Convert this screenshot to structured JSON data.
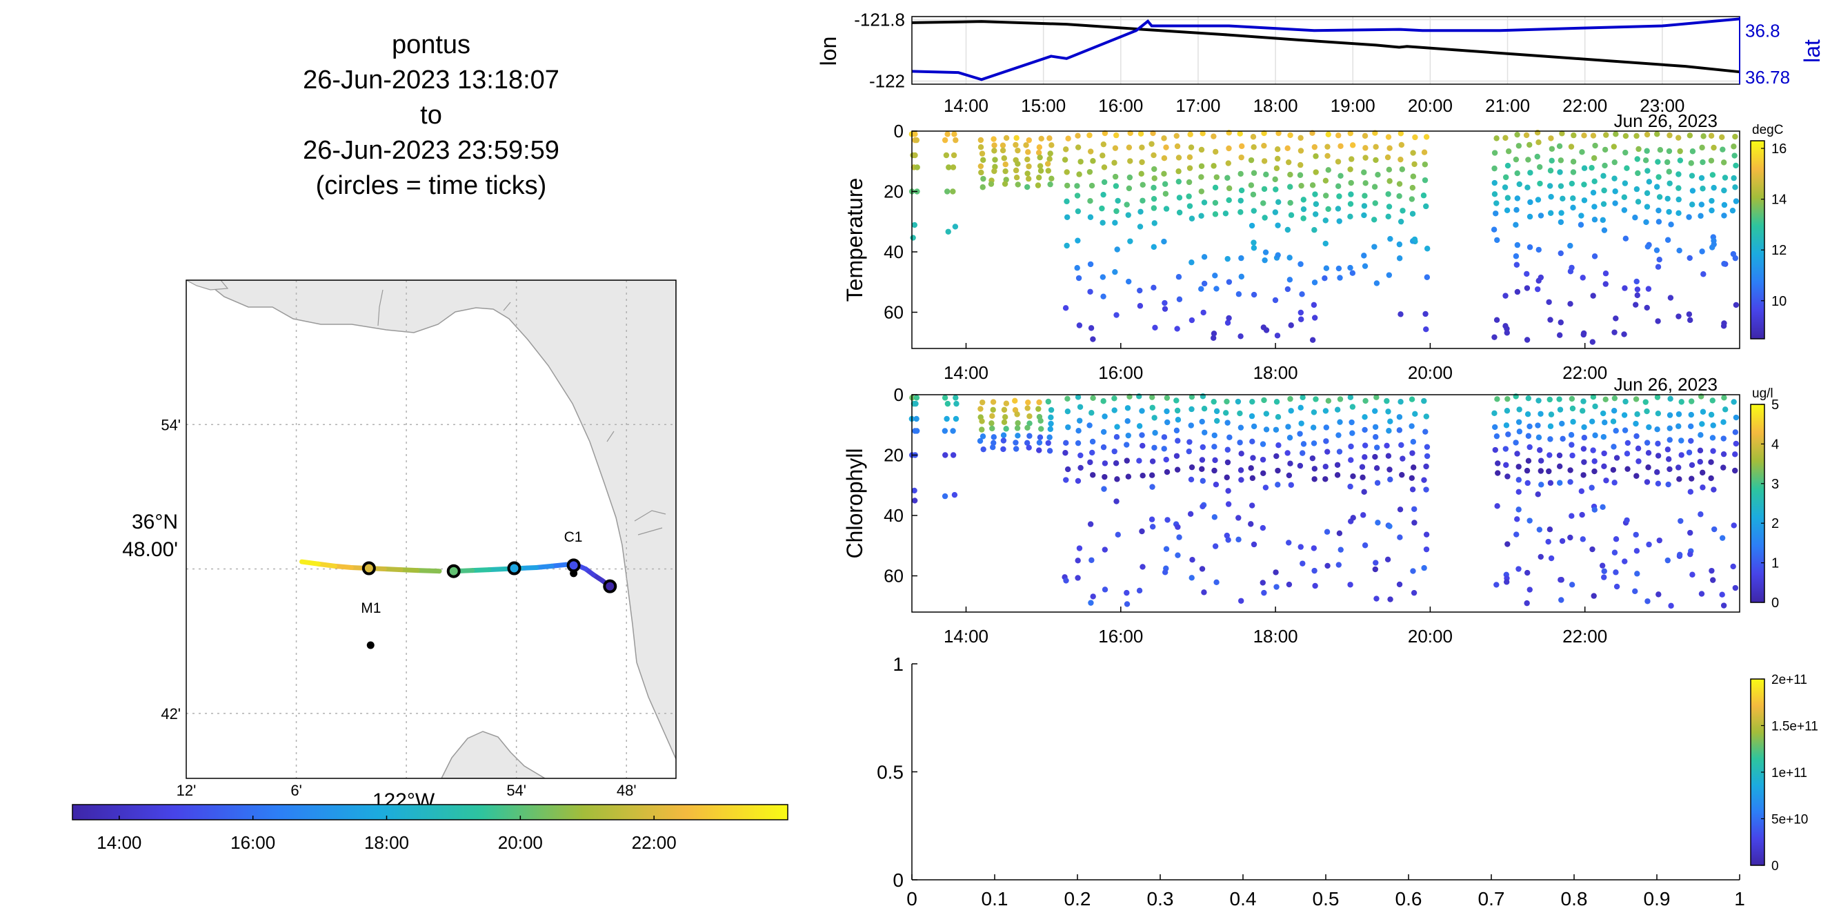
{
  "figure": {
    "title_lines": [
      "pontus",
      "26-Jun-2023 13:18:07",
      "to",
      "26-Jun-2023 23:59:59",
      "(circles = time ticks)"
    ],
    "text_color": "#000000",
    "secondary_color": "#0000cc",
    "colormap": [
      "#3e26a8",
      "#4744e8",
      "#2d7ef6",
      "#1cabdf",
      "#2ec49e",
      "#a3bd3b",
      "#f4ba3f",
      "#f9fb15"
    ]
  },
  "chart_data": [
    {
      "id": "track-map",
      "type": "scatter",
      "title": "",
      "xlabel": "122°W",
      "ylabel": "36°N 48.00'",
      "ylabel_lines": [
        "36°N",
        "48.00'"
      ],
      "x_tick_labels": [
        "12'",
        "6'",
        "54'",
        "48'"
      ],
      "y_tick_labels": [
        "54'",
        "42'"
      ],
      "xlim": [
        -122.2,
        -121.755
      ],
      "ylim": [
        36.655,
        37.0
      ],
      "grid": true,
      "land_color": "#e8e8e8",
      "coast_color": "#999999",
      "stations": [
        {
          "label": "M1",
          "lon": -122.0325,
          "lat": 36.7472
        },
        {
          "label": "C1",
          "lon": -121.848,
          "lat": 36.797
        }
      ],
      "track": {
        "lon": [
          -121.815,
          -121.822,
          -121.83,
          -121.837,
          -121.846,
          -121.855,
          -121.868,
          -121.882,
          -121.896,
          -121.91,
          -121.925,
          -121.94,
          -121.955,
          -121.97,
          -121.99,
          -122.005,
          -122.02,
          -122.035,
          -122.05,
          -122.065,
          -122.08,
          -122.095
        ],
        "lat": [
          36.788,
          36.792,
          36.796,
          36.8,
          36.803,
          36.803,
          36.802,
          36.801,
          36.8005,
          36.8,
          36.7995,
          36.799,
          36.7985,
          36.7985,
          36.799,
          36.7995,
          36.8,
          36.8005,
          36.801,
          36.802,
          36.8035,
          36.805
        ],
        "hours": [
          13.3,
          13.8,
          14.3,
          14.8,
          15.3,
          15.9,
          16.5,
          17.2,
          17.9,
          18.5,
          19.1,
          19.6,
          20.0,
          20.4,
          20.8,
          21.2,
          21.6,
          22.0,
          22.4,
          22.8,
          23.4,
          24.0
        ]
      },
      "time_tick_circles": [
        {
          "lon": -121.815,
          "lat": 36.788,
          "hour": 13.3
        },
        {
          "lon": -121.848,
          "lat": 36.8025,
          "hour": 15.1
        },
        {
          "lon": -121.902,
          "lat": 36.8005,
          "hour": 17.7
        },
        {
          "lon": -121.957,
          "lat": 36.7985,
          "hour": 20.1
        },
        {
          "lon": -122.034,
          "lat": 36.8005,
          "hour": 22.0
        }
      ]
    },
    {
      "id": "time-colorbar",
      "type": "heatmap",
      "tick_labels": [
        "14:00",
        "16:00",
        "18:00",
        "20:00",
        "22:00"
      ],
      "tick_hours": [
        14,
        16,
        18,
        20,
        22
      ],
      "range": [
        13.3,
        24.0
      ]
    },
    {
      "id": "lon-lat",
      "type": "line",
      "title": "",
      "xlabel": "",
      "ylabel": "lon",
      "y2label": "lat",
      "x_tick_labels": [
        "14:00",
        "15:00",
        "16:00",
        "17:00",
        "18:00",
        "19:00",
        "20:00",
        "21:00",
        "22:00",
        "23:00"
      ],
      "x_tick_hours": [
        14,
        15,
        16,
        17,
        18,
        19,
        20,
        21,
        22,
        23
      ],
      "xlim": [
        13.3,
        24.0
      ],
      "ylim": [
        -122.01,
        -121.79
      ],
      "y_tick_labels": [
        "-121.8",
        "-122"
      ],
      "y_ticks": [
        -121.8,
        -122.0
      ],
      "y2lim": [
        36.777,
        36.806
      ],
      "y2_tick_labels": [
        "36.8",
        "36.78"
      ],
      "y2_ticks": [
        36.8,
        36.78
      ],
      "grid": true,
      "series": [
        {
          "name": "lon",
          "color": "#000000",
          "x": [
            13.3,
            14.2,
            15.3,
            16.3,
            17.3,
            18.3,
            19.3,
            19.6,
            19.7,
            20.3,
            21.3,
            22.3,
            23.3,
            24.0
          ],
          "y": [
            -121.81,
            -121.806,
            -121.815,
            -121.832,
            -121.848,
            -121.866,
            -121.883,
            -121.89,
            -121.887,
            -121.898,
            -121.916,
            -121.934,
            -121.952,
            -121.97
          ]
        },
        {
          "name": "lat",
          "color": "#0000cc",
          "x": [
            13.3,
            13.9,
            14.2,
            15.1,
            15.3,
            16.2,
            16.35,
            16.4,
            17.4,
            18.5,
            19.6,
            19.9,
            20.9,
            21.9,
            23.0,
            24.0
          ],
          "y": [
            36.7825,
            36.782,
            36.779,
            36.789,
            36.788,
            36.8,
            36.804,
            36.802,
            36.802,
            36.8,
            36.8005,
            36.8,
            36.8,
            36.801,
            36.802,
            36.805
          ]
        }
      ]
    },
    {
      "id": "temperature",
      "type": "scatter",
      "title": "",
      "xlabel": "",
      "ylabel": "Temperature",
      "date_label": "Jun 26, 2023",
      "x_tick_labels": [
        "14:00",
        "16:00",
        "18:00",
        "20:00",
        "22:00"
      ],
      "x_tick_hours": [
        14,
        16,
        18,
        20,
        22
      ],
      "xlim": [
        13.3,
        24.0
      ],
      "ylim": [
        0,
        72
      ],
      "y_reversed": true,
      "y_tick_labels": [
        "0",
        "20",
        "40",
        "60"
      ],
      "y_ticks": [
        0,
        20,
        40,
        60
      ],
      "colorbar": {
        "unit": "degC",
        "range": [
          8.5,
          16.3
        ],
        "tick_labels": [
          "16",
          "14",
          "12",
          "10"
        ],
        "ticks": [
          16,
          14,
          12,
          10
        ]
      },
      "profiles": {
        "top_hours": [
          13.32,
          13.35,
          13.75,
          13.85
        ],
        "dense_hours": [
          14.2,
          14.35,
          14.5,
          14.65,
          14.8,
          14.95,
          15.08
        ],
        "dive_start": 15.3,
        "dive_end": 20.0,
        "dive_step": 0.16,
        "dive2_start": 20.85,
        "dive2_end": 24.0,
        "dive2_step": 0.14
      },
      "profile_rule": {
        "surface_value": 15.5,
        "min_value": 9.0,
        "thermocline_depth": 14,
        "decay": 0.09
      }
    },
    {
      "id": "chlorophyll",
      "type": "scatter",
      "title": "",
      "xlabel": "",
      "ylabel": "Chlorophyll",
      "date_label": "Jun 26, 2023",
      "x_tick_labels": [
        "14:00",
        "16:00",
        "18:00",
        "20:00",
        "22:00"
      ],
      "x_tick_hours": [
        14,
        16,
        18,
        20,
        22
      ],
      "xlim": [
        13.3,
        24.0
      ],
      "ylim": [
        0,
        72
      ],
      "y_reversed": true,
      "y_tick_labels": [
        "0",
        "20",
        "40",
        "60"
      ],
      "y_ticks": [
        0,
        20,
        40,
        60
      ],
      "colorbar": {
        "unit": "ug/l",
        "range": [
          0,
          5
        ],
        "tick_labels": [
          "5",
          "4",
          "3",
          "2",
          "1",
          "0"
        ],
        "ticks": [
          5,
          4,
          3,
          2,
          1,
          0
        ]
      },
      "profile_rule": {
        "surface_value": 3.0,
        "peak_value": 4.5,
        "peak_hour_range": [
          14.2,
          15.0
        ],
        "decay": 0.12
      }
    },
    {
      "id": "empty-panel",
      "type": "scatter",
      "title": "",
      "xlabel": "",
      "ylabel": "",
      "x_tick_labels": [
        "0",
        "0.1",
        "0.2",
        "0.3",
        "0.4",
        "0.5",
        "0.6",
        "0.7",
        "0.8",
        "0.9",
        "1"
      ],
      "x_ticks": [
        0,
        0.1,
        0.2,
        0.3,
        0.4,
        0.5,
        0.6,
        0.7,
        0.8,
        0.9,
        1
      ],
      "y_tick_labels": [
        "0",
        "0.5",
        "1"
      ],
      "y_ticks": [
        0,
        0.5,
        1
      ],
      "xlim": [
        0,
        1
      ],
      "ylim": [
        0,
        1
      ],
      "colorbar": {
        "unit": "",
        "range": [
          0,
          200000000000.0
        ],
        "tick_labels": [
          "2e+11",
          "1.5e+11",
          "1e+11",
          "5e+10",
          "0"
        ],
        "ticks": [
          200000000000.0,
          150000000000.0,
          100000000000.0,
          50000000000.0,
          0
        ]
      },
      "values": []
    }
  ]
}
